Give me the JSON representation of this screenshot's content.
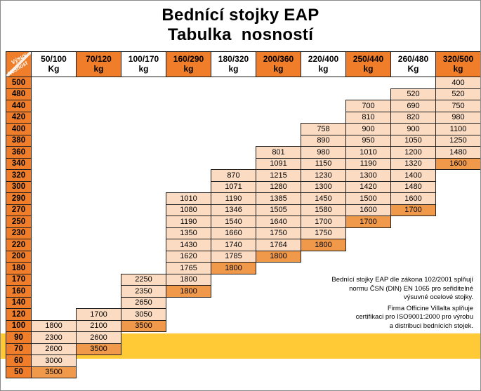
{
  "title": {
    "line1": "Bednící stojky EAP",
    "line2": "Tabulka nosností"
  },
  "note": {
    "lines": [
      "Bednící stojky EAP dle zákona 102/2001 splňují",
      "normu ČSN (DIN) EN 1065 pro seřiditelné",
      "výsuvné ocelové stojky.",
      "Firma Officine Villalta splňuje",
      "certifikaci pro ISO9001:2000 pro výrobu",
      "a distribuci bednících stojek."
    ]
  },
  "colors": {
    "header_orange": "#ef7d2a",
    "cell_peach": "#fbdcc2",
    "cell_end": "#f0994a",
    "band_yellow": "#ffca35"
  },
  "table": {
    "corner": {
      "top": "Výsuv",
      "bottom": "Nosnost"
    },
    "columns": [
      {
        "range": "50/100",
        "unit": "Kg"
      },
      {
        "range": "70/120",
        "unit": "kg"
      },
      {
        "range": "100/170",
        "unit": "kg"
      },
      {
        "range": "160/290",
        "unit": "kg"
      },
      {
        "range": "180/320",
        "unit": "kg"
      },
      {
        "range": "200/360",
        "unit": "kg"
      },
      {
        "range": "220/400",
        "unit": "kg"
      },
      {
        "range": "250/440",
        "unit": "kg"
      },
      {
        "range": "260/480",
        "unit": "Kg"
      },
      {
        "range": "320/500",
        "unit": "kg"
      }
    ],
    "rows": [
      {
        "label": "500",
        "cells": [
          null,
          null,
          null,
          null,
          null,
          null,
          null,
          null,
          null,
          "400"
        ]
      },
      {
        "label": "480",
        "cells": [
          null,
          null,
          null,
          null,
          null,
          null,
          null,
          null,
          "520",
          "520"
        ]
      },
      {
        "label": "440",
        "cells": [
          null,
          null,
          null,
          null,
          null,
          null,
          null,
          "700",
          "690",
          "750"
        ]
      },
      {
        "label": "420",
        "cells": [
          null,
          null,
          null,
          null,
          null,
          null,
          null,
          "810",
          "820",
          "980"
        ]
      },
      {
        "label": "400",
        "cells": [
          null,
          null,
          null,
          null,
          null,
          null,
          "758",
          "900",
          "900",
          "1100"
        ]
      },
      {
        "label": "380",
        "cells": [
          null,
          null,
          null,
          null,
          null,
          null,
          "890",
          "950",
          "1050",
          "1250"
        ]
      },
      {
        "label": "360",
        "cells": [
          null,
          null,
          null,
          null,
          null,
          "801",
          "980",
          "1010",
          "1200",
          "1480"
        ]
      },
      {
        "label": "340",
        "cells": [
          null,
          null,
          null,
          null,
          null,
          "1091",
          "1150",
          "1190",
          "1320",
          {
            "v": "1600",
            "end": true
          }
        ]
      },
      {
        "label": "320",
        "cells": [
          null,
          null,
          null,
          null,
          "870",
          "1215",
          "1230",
          "1300",
          "1400",
          null
        ]
      },
      {
        "label": "300",
        "cells": [
          null,
          null,
          null,
          null,
          "1071",
          "1280",
          "1300",
          "1420",
          "1480",
          null
        ]
      },
      {
        "label": "290",
        "cells": [
          null,
          null,
          null,
          "1010",
          "1190",
          "1385",
          "1450",
          "1500",
          "1600",
          null
        ]
      },
      {
        "label": "270",
        "cells": [
          null,
          null,
          null,
          "1080",
          "1346",
          "1505",
          "1580",
          "1600",
          {
            "v": "1700",
            "end": true
          },
          null
        ]
      },
      {
        "label": "250",
        "cells": [
          null,
          null,
          null,
          "1190",
          "1540",
          "1640",
          "1700",
          {
            "v": "1700",
            "end": true
          },
          null,
          null
        ]
      },
      {
        "label": "230",
        "cells": [
          null,
          null,
          null,
          "1350",
          "1660",
          "1750",
          "1750",
          null,
          null,
          null
        ]
      },
      {
        "label": "220",
        "cells": [
          null,
          null,
          null,
          "1430",
          "1740",
          "1764",
          {
            "v": "1800",
            "end": true
          },
          null,
          null,
          null
        ]
      },
      {
        "label": "200",
        "cells": [
          null,
          null,
          null,
          "1620",
          "1785",
          {
            "v": "1800",
            "end": true
          },
          null,
          null,
          null,
          null
        ]
      },
      {
        "label": "180",
        "cells": [
          null,
          null,
          null,
          "1765",
          {
            "v": "1800",
            "end": true
          },
          null,
          null,
          null,
          null,
          null
        ]
      },
      {
        "label": "170",
        "cells": [
          null,
          null,
          "2250",
          "1800",
          null,
          null,
          null,
          null,
          null,
          null
        ]
      },
      {
        "label": "160",
        "cells": [
          null,
          null,
          "2350",
          {
            "v": "1800",
            "end": true
          },
          null,
          null,
          null,
          null,
          null,
          null
        ]
      },
      {
        "label": "140",
        "cells": [
          null,
          null,
          "2650",
          null,
          null,
          null,
          null,
          null,
          null,
          null
        ]
      },
      {
        "label": "120",
        "cells": [
          null,
          "1700",
          "3050",
          null,
          null,
          null,
          null,
          null,
          null,
          null
        ]
      },
      {
        "label": "100",
        "cells": [
          "1800",
          "2100",
          {
            "v": "3500",
            "end": true
          },
          null,
          null,
          null,
          null,
          null,
          null,
          null
        ]
      },
      {
        "label": "90",
        "cells": [
          "2300",
          "2600",
          null,
          null,
          null,
          null,
          null,
          null,
          null,
          null
        ]
      },
      {
        "label": "70",
        "cells": [
          "2600",
          {
            "v": "3500",
            "end": true
          },
          null,
          null,
          null,
          null,
          null,
          null,
          null,
          null
        ]
      },
      {
        "label": "60",
        "cells": [
          "3000",
          null,
          null,
          null,
          null,
          null,
          null,
          null,
          null,
          null
        ]
      },
      {
        "label": "50",
        "cells": [
          {
            "v": "3500",
            "end": true
          },
          null,
          null,
          null,
          null,
          null,
          null,
          null,
          null,
          null
        ]
      }
    ]
  }
}
